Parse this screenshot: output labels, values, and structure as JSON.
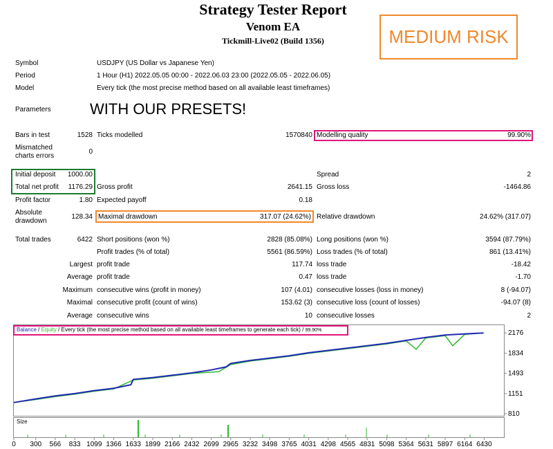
{
  "header": {
    "title": "Strategy Tester Report",
    "ea_name": "Venom EA",
    "server": "Tickmill-Live02 (Build 1356)",
    "risk_badge": "MEDIUM RISK"
  },
  "info": {
    "symbol_label": "Symbol",
    "symbol_value": "USDJPY (US Dollar vs Japanese Yen)",
    "period_label": "Period",
    "period_value": "1 Hour (H1) 2022.05.05 00:00 - 2022.06.03 23:00 (2022.05.05 - 2022.06.05)",
    "model_label": "Model",
    "model_value": "Every tick (the most precise method based on all available least timeframes)",
    "parameters_label": "Parameters",
    "parameters_note": "WITH OUR PRESETS!"
  },
  "stats": {
    "bars_label": "Bars in test",
    "bars_value": "1528",
    "ticks_label": "Ticks modelled",
    "ticks_value": "1570840",
    "quality_label": "Modelling quality",
    "quality_value": "99.90%",
    "mismatch_label_1": "Mismatched",
    "mismatch_label_2": "charts errors",
    "mismatch_value": "0",
    "deposit_label": "Initial deposit",
    "deposit_value": "1000.00",
    "spread_label": "Spread",
    "spread_value": "2",
    "net_label": "Total net profit",
    "net_value": "1176.29",
    "gross_profit_label": "Gross profit",
    "gross_profit_value": "2641.15",
    "gross_loss_label": "Gross loss",
    "gross_loss_value": "-1464.86",
    "pf_label": "Profit factor",
    "pf_value": "1.80",
    "payoff_label": "Expected payoff",
    "payoff_value": "0.18",
    "absdd_label_1": "Absolute",
    "absdd_label_2": "drawdown",
    "absdd_value": "128.34",
    "maxdd_label": "Maximal drawdown",
    "maxdd_value": "317.07 (24.62%)",
    "reldd_label": "Relative drawdown",
    "reldd_value": "24.62% (317.07)",
    "trades_label": "Total trades",
    "trades_value": "6422",
    "short_label": "Short positions (won %)",
    "short_value": "2828 (85.08%)",
    "long_label": "Long positions (won %)",
    "long_value": "3594 (87.79%)",
    "profit_trades_label": "Profit trades (% of total)",
    "profit_trades_value": "5561 (86.59%)",
    "loss_trades_label": "Loss trades (% of total)",
    "loss_trades_value": "861 (13.41%)",
    "largest_label": "Largest",
    "largest_profit_label": "profit trade",
    "largest_profit_value": "117.74",
    "largest_loss_label": "loss trade",
    "largest_loss_value": "-18.42",
    "average_label": "Average",
    "average_profit_label": "profit trade",
    "average_profit_value": "0.47",
    "average_loss_label": "loss trade",
    "average_loss_value": "-1.70",
    "maximum_label": "Maximum",
    "max_wins_label": "consecutive wins (profit in money)",
    "max_wins_value": "107 (4.01)",
    "max_losses_label": "consecutive losses (loss in money)",
    "max_losses_value": "8 (-94.07)",
    "maximal_label": "Maximal",
    "maximal_profit_label": "consecutive profit (count of wins)",
    "maximal_profit_value": "153.62 (3)",
    "maximal_loss_label": "consecutive loss (count of losses)",
    "maximal_loss_value": "-94.07 (8)",
    "avg2_label": "Average",
    "avg_wins_label": "consecutive wins",
    "avg_wins_value": "10",
    "avg_losses_label": "consecutive losses",
    "avg_losses_value": "2"
  },
  "chart_legend": {
    "balance": "Balance",
    "sep1": " / ",
    "equity": "Equity",
    "desc": " / Every tick (the most precise method based on all available least timeframes to generate each tick)",
    "sep2": " / ",
    "quality": "99.90%"
  },
  "size_label": "Size",
  "colors": {
    "balance": "#1f2bb0",
    "equity": "#2eb82e",
    "size_bars": "#2eb82e",
    "risk_badge": "#f0882c",
    "highlight_pink": "#e0157a",
    "highlight_green": "#1a7a2e",
    "highlight_orange": "#f0882c"
  },
  "chart_data": {
    "type": "line",
    "title": "",
    "xlabel": "",
    "ylabel": "",
    "x_ticks": [
      "0",
      "300",
      "566",
      "833",
      "1099",
      "1366",
      "1633",
      "1899",
      "2166",
      "2432",
      "2699",
      "2965",
      "3232",
      "3498",
      "3765",
      "4031",
      "4298",
      "4565",
      "4831",
      "5098",
      "5364",
      "5631",
      "5897",
      "6164",
      "6430"
    ],
    "y_ticks": [
      "2176",
      "1834",
      "1493",
      "1151",
      "810"
    ],
    "xlim": [
      0,
      6700
    ],
    "ylim": [
      810,
      2260
    ],
    "series": [
      {
        "name": "Balance",
        "x": [
          0,
          300,
          566,
          833,
          1099,
          1366,
          1600,
          1633,
          1899,
          2166,
          2432,
          2699,
          2900,
          2965,
          3232,
          3498,
          3765,
          4031,
          4298,
          4565,
          4831,
          5098,
          5364,
          5631,
          5897,
          6164,
          6422
        ],
        "values": [
          1000,
          1060,
          1110,
          1150,
          1200,
          1240,
          1300,
          1390,
          1420,
          1460,
          1500,
          1550,
          1600,
          1660,
          1710,
          1750,
          1790,
          1840,
          1880,
          1920,
          1960,
          2000,
          2050,
          2100,
          2140,
          2160,
          2176
        ]
      },
      {
        "name": "Equity",
        "x": [
          0,
          300,
          566,
          833,
          1099,
          1366,
          1633,
          1899,
          2166,
          2432,
          2800,
          2965,
          3232,
          3498,
          3765,
          4031,
          4298,
          4565,
          4831,
          5098,
          5364,
          5500,
          5631,
          5897,
          6000,
          6164,
          6422
        ],
        "values": [
          1000,
          1050,
          1100,
          1140,
          1190,
          1230,
          1380,
          1410,
          1450,
          1490,
          1520,
          1640,
          1700,
          1740,
          1780,
          1830,
          1870,
          1910,
          1950,
          1990,
          2040,
          1900,
          2090,
          2130,
          1960,
          2150,
          2176
        ]
      }
    ]
  }
}
